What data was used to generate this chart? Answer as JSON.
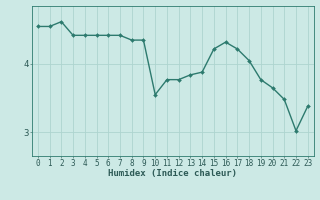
{
  "x": [
    0,
    1,
    2,
    3,
    4,
    5,
    6,
    7,
    8,
    9,
    10,
    11,
    12,
    13,
    14,
    15,
    16,
    17,
    18,
    19,
    20,
    21,
    22,
    23
  ],
  "y": [
    4.55,
    4.55,
    4.62,
    4.42,
    4.42,
    4.42,
    4.42,
    4.42,
    4.35,
    4.35,
    3.55,
    3.77,
    3.77,
    3.84,
    3.88,
    4.22,
    4.32,
    4.22,
    4.05,
    3.77,
    3.65,
    3.48,
    3.02,
    3.38
  ],
  "line_color": "#2d7a6e",
  "marker": "D",
  "marker_size": 2.0,
  "bg_color": "#cce9e5",
  "grid_color": "#aed4cf",
  "axis_color": "#2d7a6e",
  "text_color": "#2d5a56",
  "xlabel": "Humidex (Indice chaleur)",
  "yticks": [
    3,
    4
  ],
  "xlim": [
    -0.5,
    23.5
  ],
  "ylim": [
    2.65,
    4.85
  ],
  "xlabel_fontsize": 6.5,
  "tick_fontsize": 5.5,
  "line_width": 1.0
}
